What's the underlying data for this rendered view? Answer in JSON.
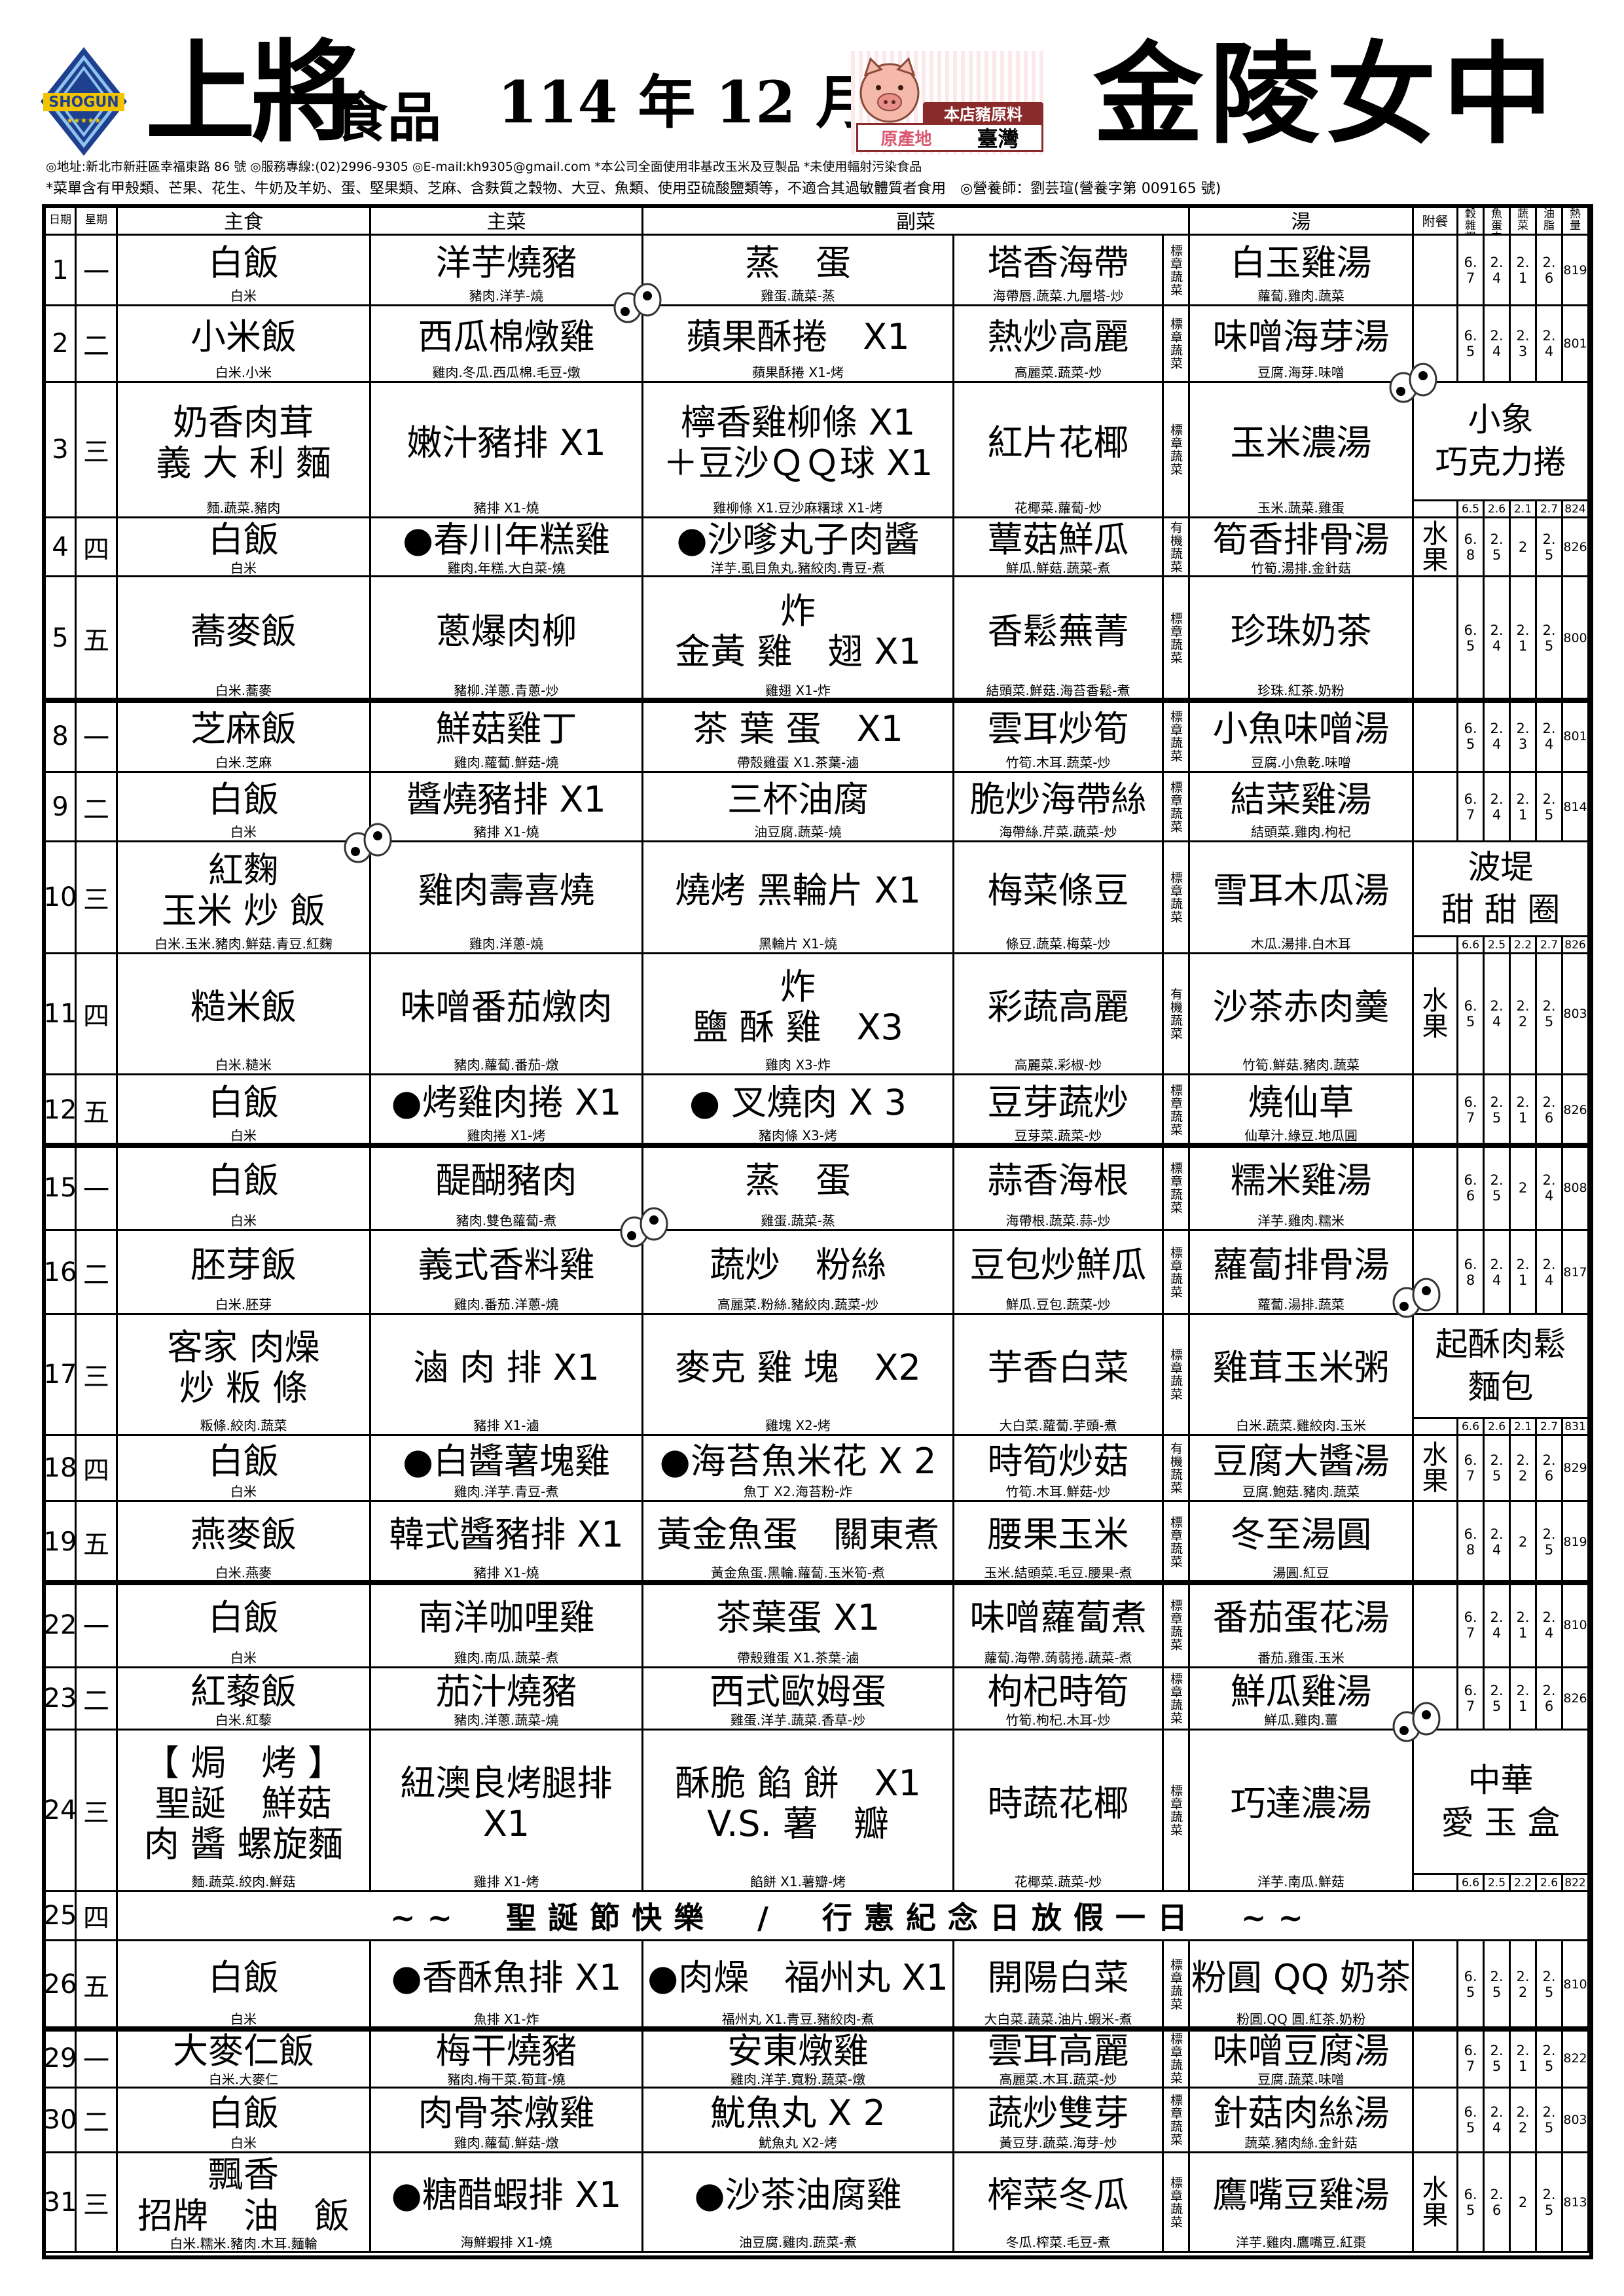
{
  "header": {
    "brand": "上將",
    "brand_sub": "食品",
    "logo_text": "SHOGUN",
    "period": "114 年 12 月",
    "badge": {
      "top": "本店豬原料",
      "origin_label": "原產地",
      "origin": "臺灣"
    },
    "school": "金陵女中",
    "info_line1": "◎地址:新北市新莊區幸福東路 86 號 ◎服務專線:(02)2996-9305 ◎E-mail:kh9305@gmail.com *本公司全面使用非基改玉米及豆製品 *未使用輻射污染食品",
    "info_line2": "*菜單含有甲殼類、芒果、花生、牛奶及羊奶、蛋、堅果類、芝麻、含麩質之穀物、大豆、魚類、使用亞硫酸鹽類等，不適合其過敏體質者食用　◎營養師：劉芸瑄(營養字第 009165 號)"
  },
  "columns": {
    "date": "日期",
    "weekday": "星期",
    "staple": "主食",
    "main": "主菜",
    "side": "副菜",
    "soup": "湯",
    "extra": "附餐",
    "grain": "全穀雜糧",
    "protein": "豆魚蛋肉",
    "vegetable": "蔬菜",
    "oil": "油脂",
    "kcal": "熱量"
  },
  "colors": {
    "border": "#000000",
    "badge_banner": "#8b2a2a",
    "badge_origin": "#d9576e",
    "logo_blue": "#1f3f8f"
  },
  "rows": [
    {
      "date": "1",
      "wk": "一",
      "staple": {
        "name": "白飯",
        "ingr": "白米"
      },
      "main": {
        "name": "洋芋燒豬",
        "ingr": "豬肉.洋芋-燒"
      },
      "side": {
        "name": "蒸　蛋",
        "ingr": "雞蛋.蔬菜-蒸"
      },
      "veg": {
        "name": "塔香海帶",
        "ingr": "海帶唇.蔬菜.九層塔-炒"
      },
      "tag": "標章蔬菜",
      "soup": {
        "name": "白玉雞湯",
        "ingr": "蘿蔔.雞肉.蔬菜"
      },
      "extra": "",
      "nutrition": [
        "6.7",
        "2.4",
        "2.1",
        "2.6",
        "819"
      ]
    },
    {
      "date": "2",
      "wk": "二",
      "staple": {
        "name": "小米飯",
        "ingr": "白米.小米"
      },
      "main": {
        "name": "西瓜棉燉雞",
        "ingr": "雞肉.冬瓜.西瓜棉.毛豆-燉"
      },
      "side": {
        "name": "蘋果酥捲　X1",
        "ingr": "蘋果酥捲 X1-烤"
      },
      "veg": {
        "name": "熱炒高麗",
        "ingr": "高麗菜.蔬菜-炒"
      },
      "tag": "標章蔬菜",
      "soup": {
        "name": "味噌海芽湯",
        "ingr": "豆腐.海芽.味噌"
      },
      "extra": "",
      "nutrition": [
        "6.5",
        "2.4",
        "2.3",
        "2.4",
        "801"
      ]
    },
    {
      "date": "3",
      "wk": "三",
      "staple": {
        "name": "奶香肉茸\n義 大 利 麵",
        "ingr": "麵.蔬菜.豬肉"
      },
      "main": {
        "name": "嫩汁豬排 X1",
        "ingr": "豬排 X1-燒"
      },
      "side": {
        "name": "檸香雞柳條 X1\n＋豆沙ＱＱ球 X1",
        "ingr": "雞柳條 X1.豆沙麻糬球 X1-烤"
      },
      "veg": {
        "name": "紅片花椰",
        "ingr": "花椰菜.蘿蔔-炒"
      },
      "tag": "標章蔬菜",
      "soup": {
        "name": "玉米濃湯",
        "ingr": "玉米.蔬菜.雞蛋"
      },
      "extra": "",
      "dessert": "小象\n巧克力捲",
      "nutrition": [
        "6.5",
        "2.6",
        "2.1",
        "2.7",
        "824"
      ]
    },
    {
      "date": "4",
      "wk": "四",
      "staple": {
        "name": "白飯",
        "ingr": "白米"
      },
      "main": {
        "name": "●春川年糕雞",
        "ingr": "雞肉.年糕.大白菜-燒"
      },
      "side": {
        "name": "●沙嗲丸子肉醬",
        "ingr": "洋芋.虱目魚丸.豬絞肉.青豆-煮"
      },
      "veg": {
        "name": "蕈菇鮮瓜",
        "ingr": "鮮瓜.鮮菇.蔬菜-煮"
      },
      "tag": "有機蔬菜",
      "soup": {
        "name": "筍香排骨湯",
        "ingr": "竹筍.湯排.金針菇"
      },
      "extra": "水\n果",
      "nutrition": [
        "6.8",
        "2.5",
        "2",
        "2.5",
        "826"
      ]
    },
    {
      "date": "5",
      "wk": "五",
      "staple": {
        "name": "蕎麥飯",
        "ingr": "白米.蕎麥"
      },
      "main": {
        "name": "蔥爆肉柳",
        "ingr": "豬柳.洋蔥.青蔥-炒"
      },
      "side": {
        "name": "炸\n金黃 雞　翅 X1",
        "ingr": "雞翅 X1-炸"
      },
      "veg": {
        "name": "香鬆蕪菁",
        "ingr": "結頭菜.鮮菇.海苔香鬆-煮"
      },
      "tag": "標章蔬菜",
      "soup": {
        "name": "珍珠奶茶",
        "ingr": "珍珠.紅茶.奶粉"
      },
      "extra": "",
      "nutrition": [
        "6.5",
        "2.4",
        "2.1",
        "2.5",
        "800"
      ]
    },
    {
      "date": "8",
      "wk": "一",
      "staple": {
        "name": "芝麻飯",
        "ingr": "白米.芝麻"
      },
      "main": {
        "name": "鮮菇雞丁",
        "ingr": "雞肉.蘿蔔.鮮菇-燒"
      },
      "side": {
        "name": "茶 葉 蛋　X1",
        "ingr": "帶殼雞蛋 X1.茶葉-滷"
      },
      "veg": {
        "name": "雲耳炒筍",
        "ingr": "竹筍.木耳.蔬菜-炒"
      },
      "tag": "標章蔬菜",
      "soup": {
        "name": "小魚味噌湯",
        "ingr": "豆腐.小魚乾.味噌"
      },
      "extra": "",
      "nutrition": [
        "6.5",
        "2.4",
        "2.3",
        "2.4",
        "801"
      ]
    },
    {
      "date": "9",
      "wk": "二",
      "staple": {
        "name": "白飯",
        "ingr": "白米"
      },
      "main": {
        "name": "醬燒豬排 X1",
        "ingr": "豬排 X1-燒"
      },
      "side": {
        "name": "三杯油腐",
        "ingr": "油豆腐.蔬菜-燒"
      },
      "veg": {
        "name": "脆炒海帶絲",
        "ingr": "海帶絲.芹菜.蔬菜-炒"
      },
      "tag": "標章蔬菜",
      "soup": {
        "name": "結菜雞湯",
        "ingr": "結頭菜.雞肉.枸杞"
      },
      "extra": "",
      "nutrition": [
        "6.7",
        "2.4",
        "2.1",
        "2.5",
        "814"
      ]
    },
    {
      "date": "10",
      "wk": "三",
      "staple": {
        "name": "紅麴\n玉米 炒 飯",
        "ingr": "白米.玉米.豬肉.鮮菇.青豆.紅麴"
      },
      "main": {
        "name": "雞肉壽喜燒",
        "ingr": "雞肉.洋蔥-燒"
      },
      "side": {
        "name": "燒烤 黑輪片 X1",
        "ingr": "黑輪片 X1-燒"
      },
      "veg": {
        "name": "梅菜條豆",
        "ingr": "條豆.蔬菜.梅菜-炒"
      },
      "tag": "標章蔬菜",
      "soup": {
        "name": "雪耳木瓜湯",
        "ingr": "木瓜.湯排.白木耳"
      },
      "extra": "",
      "dessert": "波堤\n甜 甜 圈",
      "nutrition": [
        "6.6",
        "2.5",
        "2.2",
        "2.7",
        "826"
      ]
    },
    {
      "date": "11",
      "wk": "四",
      "staple": {
        "name": "糙米飯",
        "ingr": "白米.糙米"
      },
      "main": {
        "name": "味噌番茄燉肉",
        "ingr": "豬肉.蘿蔔.番茄-燉"
      },
      "side": {
        "name": "炸\n鹽 酥 雞　X3",
        "ingr": "雞肉 X3-炸"
      },
      "veg": {
        "name": "彩蔬高麗",
        "ingr": "高麗菜.彩椒-炒"
      },
      "tag": "有機蔬菜",
      "soup": {
        "name": "沙茶赤肉羹",
        "ingr": "竹筍.鮮菇.豬肉.蔬菜"
      },
      "extra": "水\n果",
      "nutrition": [
        "6.5",
        "2.4",
        "2.2",
        "2.5",
        "803"
      ]
    },
    {
      "date": "12",
      "wk": "五",
      "staple": {
        "name": "白飯",
        "ingr": "白米"
      },
      "main": {
        "name": "●烤雞肉捲 X1",
        "ingr": "雞肉捲 X1-烤"
      },
      "side": {
        "name": "● 叉燒肉 X 3",
        "ingr": "豬肉條 X3-烤"
      },
      "veg": {
        "name": "豆芽蔬炒",
        "ingr": "豆芽菜.蔬菜-炒"
      },
      "tag": "標章蔬菜",
      "soup": {
        "name": "燒仙草",
        "ingr": "仙草汁.綠豆.地瓜圓"
      },
      "extra": "",
      "nutrition": [
        "6.7",
        "2.5",
        "2.1",
        "2.6",
        "826"
      ]
    },
    {
      "date": "15",
      "wk": "一",
      "staple": {
        "name": "白飯",
        "ingr": "白米"
      },
      "main": {
        "name": "醍醐豬肉",
        "ingr": "豬肉.雙色蘿蔔-煮"
      },
      "side": {
        "name": "蒸　蛋",
        "ingr": "雞蛋.蔬菜-蒸"
      },
      "veg": {
        "name": "蒜香海根",
        "ingr": "海帶根.蔬菜.蒜-炒"
      },
      "tag": "標章蔬菜",
      "soup": {
        "name": "糯米雞湯",
        "ingr": "洋芋.雞肉.糯米"
      },
      "extra": "",
      "nutrition": [
        "6.6",
        "2.5",
        "2",
        "2.4",
        "808"
      ]
    },
    {
      "date": "16",
      "wk": "二",
      "staple": {
        "name": "胚芽飯",
        "ingr": "白米.胚芽"
      },
      "main": {
        "name": "義式香料雞",
        "ingr": "雞肉.番茄.洋蔥-燒"
      },
      "side": {
        "name": "蔬炒　粉絲",
        "ingr": "高麗菜.粉絲.豬絞肉.蔬菜-炒"
      },
      "veg": {
        "name": "豆包炒鮮瓜",
        "ingr": "鮮瓜.豆包.蔬菜-炒"
      },
      "tag": "標章蔬菜",
      "soup": {
        "name": "蘿蔔排骨湯",
        "ingr": "蘿蔔.湯排.蔬菜"
      },
      "extra": "",
      "nutrition": [
        "6.8",
        "2.4",
        "2.1",
        "2.4",
        "817"
      ]
    },
    {
      "date": "17",
      "wk": "三",
      "staple": {
        "name": "客家 肉燥\n炒 粄 條",
        "ingr": "粄條.絞肉.蔬菜"
      },
      "main": {
        "name": "滷 肉 排 X1",
        "ingr": "豬排 X1-滷"
      },
      "side": {
        "name": "麥克 雞 塊　X2",
        "ingr": "雞塊 X2-烤"
      },
      "veg": {
        "name": "芋香白菜",
        "ingr": "大白菜.蘿蔔.芋頭-煮"
      },
      "tag": "標章蔬菜",
      "soup": {
        "name": "雞茸玉米粥",
        "ingr": "白米.蔬菜.雞絞肉.玉米"
      },
      "extra": "",
      "dessert": "起酥肉鬆\n麵包",
      "nutrition": [
        "6.6",
        "2.6",
        "2.1",
        "2.7",
        "831"
      ]
    },
    {
      "date": "18",
      "wk": "四",
      "staple": {
        "name": "白飯",
        "ingr": "白米"
      },
      "main": {
        "name": "●白醬薯塊雞",
        "ingr": "雞肉.洋芋.青豆-煮"
      },
      "side": {
        "name": "●海苔魚米花 X 2",
        "ingr": "魚丁 X2.海苔粉-炸"
      },
      "veg": {
        "name": "時筍炒菇",
        "ingr": "竹筍.木耳.鮮菇-炒"
      },
      "tag": "有機蔬菜",
      "soup": {
        "name": "豆腐大醬湯",
        "ingr": "豆腐.鮑菇.豬肉.蔬菜"
      },
      "extra": "水\n果",
      "nutrition": [
        "6.7",
        "2.5",
        "2.2",
        "2.6",
        "829"
      ]
    },
    {
      "date": "19",
      "wk": "五",
      "staple": {
        "name": "燕麥飯",
        "ingr": "白米.燕麥"
      },
      "main": {
        "name": "韓式醬豬排 X1",
        "ingr": "豬排 X1-燒"
      },
      "side": {
        "name": "黃金魚蛋　關東煮",
        "ingr": "黃金魚蛋.黑輪.蘿蔔.玉米筍-煮"
      },
      "veg": {
        "name": "腰果玉米",
        "ingr": "玉米.結頭菜.毛豆.腰果-煮"
      },
      "tag": "標章蔬菜",
      "soup": {
        "name": "冬至湯圓",
        "ingr": "湯圓.紅豆"
      },
      "extra": "",
      "nutrition": [
        "6.8",
        "2.4",
        "2",
        "2.5",
        "819"
      ]
    },
    {
      "date": "22",
      "wk": "一",
      "staple": {
        "name": "白飯",
        "ingr": "白米"
      },
      "main": {
        "name": "南洋咖哩雞",
        "ingr": "雞肉.南瓜.蔬菜-煮"
      },
      "side": {
        "name": "茶葉蛋 X1",
        "ingr": "帶殼雞蛋 X1.茶葉-滷"
      },
      "veg": {
        "name": "味噌蘿蔔煮",
        "ingr": "蘿蔔.海帶.蒟蒻捲.蔬菜-煮"
      },
      "tag": "標章蔬菜",
      "soup": {
        "name": "番茄蛋花湯",
        "ingr": "番茄.雞蛋.玉米"
      },
      "extra": "",
      "nutrition": [
        "6.7",
        "2.4",
        "2.1",
        "2.4",
        "810"
      ]
    },
    {
      "date": "23",
      "wk": "二",
      "staple": {
        "name": "紅藜飯",
        "ingr": "白米.紅藜"
      },
      "main": {
        "name": "茄汁燒豬",
        "ingr": "豬肉.洋蔥.蔬菜-燒"
      },
      "side": {
        "name": "西式歐姆蛋",
        "ingr": "雞蛋.洋芋.蔬菜.香草-炒"
      },
      "veg": {
        "name": "枸杞時筍",
        "ingr": "竹筍.枸杞.木耳-炒"
      },
      "tag": "標章蔬菜",
      "soup": {
        "name": "鮮瓜雞湯",
        "ingr": "鮮瓜.雞肉.薑"
      },
      "extra": "",
      "nutrition": [
        "6.7",
        "2.5",
        "2.1",
        "2.6",
        "826"
      ]
    },
    {
      "date": "24",
      "wk": "三",
      "staple": {
        "name": "【 焗　烤 】\n聖誕　鮮菇\n肉 醬 螺旋麵",
        "ingr": "麵.蔬菜.絞肉.鮮菇"
      },
      "main": {
        "name": "紐澳良烤腿排\nX1",
        "ingr": "雞排 X1-烤"
      },
      "side": {
        "name": "酥脆 餡 餅　X1\nV.S. 薯　瓣",
        "ingr": "餡餅 X1.薯瓣-烤"
      },
      "veg": {
        "name": "時蔬花椰",
        "ingr": "花椰菜.蔬菜-炒"
      },
      "tag": "標章蔬菜",
      "soup": {
        "name": "巧達濃湯",
        "ingr": "洋芋.南瓜.鮮菇"
      },
      "extra": "",
      "dessert": "中華\n愛 玉 盒",
      "nutrition": [
        "6.6",
        "2.5",
        "2.2",
        "2.6",
        "822"
      ]
    },
    {
      "date": "25",
      "wk": "四",
      "holiday": "~~　聖誕節快樂　/　行憲紀念日放假一日　~~"
    },
    {
      "date": "26",
      "wk": "五",
      "staple": {
        "name": "白飯",
        "ingr": "白米"
      },
      "main": {
        "name": "●香酥魚排 X1",
        "ingr": "魚排 X1-炸"
      },
      "side": {
        "name": "●肉燥　福州丸 X1",
        "ingr": "福州丸 X1.青豆.豬絞肉-煮"
      },
      "veg": {
        "name": "開陽白菜",
        "ingr": "大白菜.蔬菜.油片.蝦米-煮"
      },
      "tag": "標章蔬菜",
      "soup": {
        "name": "粉圓 QQ 奶茶",
        "ingr": "粉圓.QQ 圓.紅茶.奶粉"
      },
      "extra": "",
      "nutrition": [
        "6.5",
        "2.5",
        "2.2",
        "2.5",
        "810"
      ]
    },
    {
      "date": "29",
      "wk": "一",
      "staple": {
        "name": "大麥仁飯",
        "ingr": "白米.大麥仁"
      },
      "main": {
        "name": "梅干燒豬",
        "ingr": "豬肉.梅干菜.筍茸-燒"
      },
      "side": {
        "name": "安東燉雞",
        "ingr": "雞肉.洋芋.寬粉.蔬菜-燉"
      },
      "veg": {
        "name": "雲耳高麗",
        "ingr": "高麗菜.木耳.蔬菜-炒"
      },
      "tag": "標章蔬菜",
      "soup": {
        "name": "味噌豆腐湯",
        "ingr": "豆腐.蔬菜.味噌"
      },
      "extra": "",
      "nutrition": [
        "6.7",
        "2.5",
        "2.1",
        "2.5",
        "822"
      ]
    },
    {
      "date": "30",
      "wk": "二",
      "staple": {
        "name": "白飯",
        "ingr": "白米"
      },
      "main": {
        "name": "肉骨茶燉雞",
        "ingr": "雞肉.蘿蔔.鮮菇-燉"
      },
      "side": {
        "name": "魷魚丸 X 2",
        "ingr": "魷魚丸 X2-烤"
      },
      "veg": {
        "name": "蔬炒雙芽",
        "ingr": "黃豆芽.蔬菜.海芽-炒"
      },
      "tag": "標章蔬菜",
      "soup": {
        "name": "針菇肉絲湯",
        "ingr": "蔬菜.豬肉絲.金針菇"
      },
      "extra": "",
      "nutrition": [
        "6.5",
        "2.4",
        "2.2",
        "2.5",
        "803"
      ]
    },
    {
      "date": "31",
      "wk": "三",
      "staple": {
        "name": "飄香\n招牌　油　飯",
        "ingr": "白米.糯米.豬肉.木耳.麵輪"
      },
      "main": {
        "name": "●糖醋蝦排 X1",
        "ingr": "海鮮蝦排 X1-燒"
      },
      "side": {
        "name": "●沙茶油腐雞",
        "ingr": "油豆腐.雞肉.蔬菜-煮"
      },
      "veg": {
        "name": "榨菜冬瓜",
        "ingr": "冬瓜.榨菜.毛豆-煮"
      },
      "tag": "標章蔬菜",
      "soup": {
        "name": "鷹嘴豆雞湯",
        "ingr": "洋芋.雞肉.鷹嘴豆.紅棗"
      },
      "extra": "水\n果",
      "nutrition": [
        "6.5",
        "2.6",
        "2",
        "2.5",
        "813"
      ]
    }
  ],
  "decorations": {
    "googly_eyes_count": 6
  }
}
